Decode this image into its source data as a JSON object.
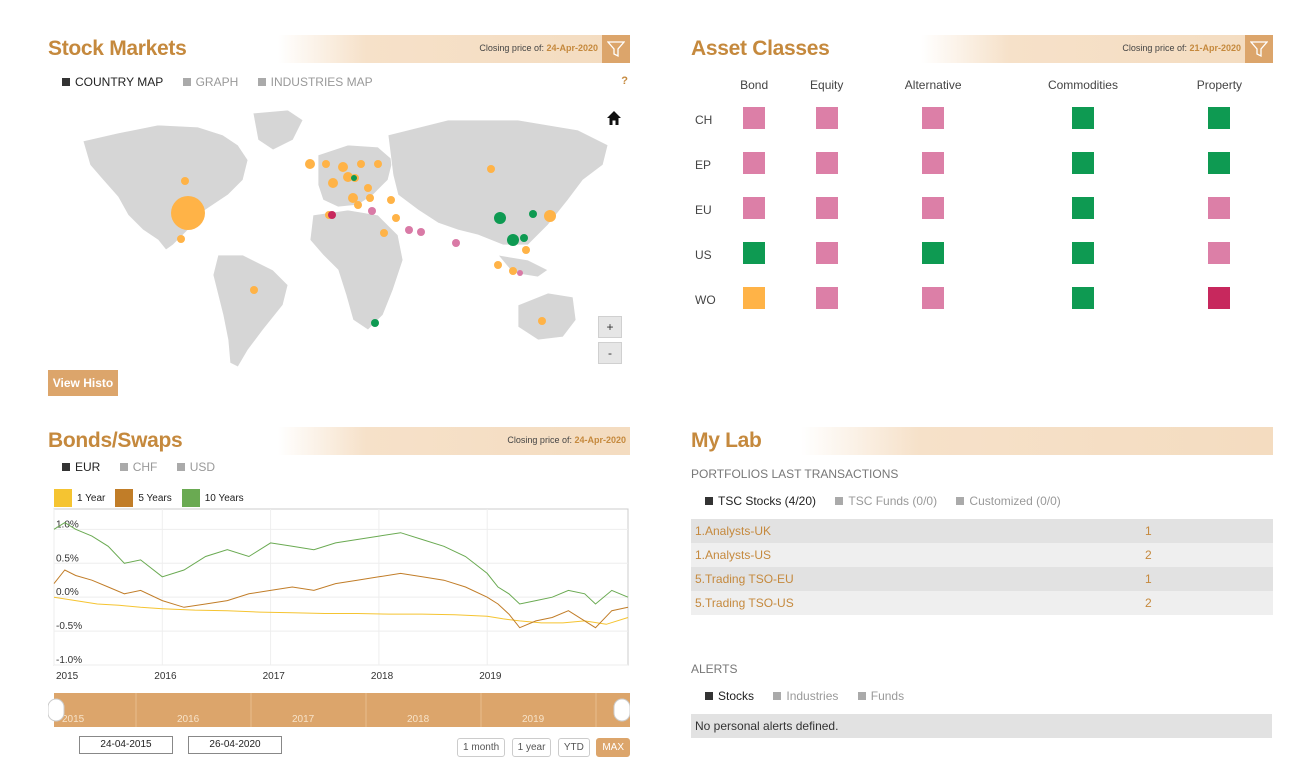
{
  "stock_markets": {
    "title": "Stock Markets",
    "closing_label": "Closing price of:",
    "closing_date": "24-Apr-2020",
    "tabs": [
      "COUNTRY MAP",
      "GRAPH",
      "INDUSTRIES MAP"
    ],
    "help": "?",
    "zoom_in": "+",
    "zoom_out": "-",
    "view_histo": "View Histo",
    "colors": {
      "orange": "#ffb347",
      "green": "#0e9a52",
      "pink": "#d97aa6",
      "crimson": "#c7285d",
      "land": "#d6d6d6"
    }
  },
  "asset_classes": {
    "title": "Asset Classes",
    "closing_label": "Closing price of:",
    "closing_date": "21-Apr-2020",
    "columns": [
      "Bond",
      "Equity",
      "Alternative",
      "Commodities",
      "Property"
    ],
    "rows": [
      {
        "label": "CH",
        "cells": [
          "pink",
          "pink",
          "pink",
          "green",
          "green"
        ]
      },
      {
        "label": "EP",
        "cells": [
          "pink",
          "pink",
          "pink",
          "green",
          "green"
        ]
      },
      {
        "label": "EU",
        "cells": [
          "pink",
          "pink",
          "pink",
          "green",
          "pink"
        ]
      },
      {
        "label": "US",
        "cells": [
          "green",
          "pink",
          "green",
          "green",
          "pink"
        ]
      },
      {
        "label": "WO",
        "cells": [
          "orange",
          "pink",
          "pink",
          "green",
          "crimson"
        ]
      }
    ],
    "colors": {
      "pink": "#dc7fa7",
      "green": "#0e9a52",
      "orange": "#ffb347",
      "crimson": "#c7285d"
    }
  },
  "bonds": {
    "title": "Bonds/Swaps",
    "closing_label": "Closing price of:",
    "closing_date": "24-Apr-2020",
    "tabs": [
      "EUR",
      "CHF",
      "USD"
    ],
    "legend": [
      {
        "name": "1 Year",
        "color": "#f5c431"
      },
      {
        "name": "5 Years",
        "color": "#c17d28"
      },
      {
        "name": "10 Years",
        "color": "#6aaa52"
      }
    ],
    "start_date": "24-04-2015",
    "end_date": "26-04-2020",
    "range_buttons": [
      "1 month",
      "1 year",
      "YTD",
      "MAX"
    ],
    "navigator_years": [
      "2015",
      "2016",
      "2017",
      "2018",
      "2019"
    ]
  },
  "chart_data": {
    "type": "line",
    "title": "",
    "xlabel": "",
    "ylabel": "",
    "x_ticks": [
      "2015",
      "2016",
      "2017",
      "2018",
      "2019"
    ],
    "y_ticks": [
      "1.0%",
      "0.5%",
      "0.0%",
      "-0.5%",
      "-1.0%"
    ],
    "ylim": [
      -1.0,
      1.3
    ],
    "xlim": [
      2015.0,
      2020.3
    ],
    "series": [
      {
        "name": "1 Year",
        "color": "#f5c431",
        "x": [
          2015.0,
          2015.2,
          2015.4,
          2015.6,
          2015.8,
          2016.0,
          2016.3,
          2016.6,
          2016.9,
          2017.2,
          2017.5,
          2017.8,
          2018.1,
          2018.4,
          2018.7,
          2019.0,
          2019.15,
          2019.3,
          2019.5,
          2019.7,
          2019.9,
          2020.1,
          2020.3
        ],
        "y": [
          0.0,
          -0.05,
          -0.1,
          -0.12,
          -0.15,
          -0.17,
          -0.19,
          -0.2,
          -0.22,
          -0.23,
          -0.24,
          -0.24,
          -0.25,
          -0.25,
          -0.26,
          -0.28,
          -0.32,
          -0.35,
          -0.38,
          -0.38,
          -0.35,
          -0.4,
          -0.3
        ]
      },
      {
        "name": "5 Years",
        "color": "#c17d28",
        "x": [
          2015.0,
          2015.1,
          2015.2,
          2015.35,
          2015.5,
          2015.65,
          2015.8,
          2016.0,
          2016.2,
          2016.4,
          2016.6,
          2016.8,
          2017.0,
          2017.2,
          2017.4,
          2017.6,
          2017.8,
          2018.0,
          2018.2,
          2018.4,
          2018.6,
          2018.8,
          2019.0,
          2019.1,
          2019.2,
          2019.3,
          2019.45,
          2019.6,
          2019.75,
          2019.9,
          2020.0,
          2020.15,
          2020.3
        ],
        "y": [
          0.2,
          0.4,
          0.32,
          0.25,
          0.15,
          0.05,
          0.1,
          -0.05,
          -0.15,
          -0.1,
          -0.05,
          0.05,
          0.1,
          0.15,
          0.1,
          0.2,
          0.25,
          0.3,
          0.35,
          0.3,
          0.25,
          0.15,
          0.0,
          -0.1,
          -0.25,
          -0.45,
          -0.35,
          -0.3,
          -0.2,
          -0.35,
          -0.45,
          -0.2,
          -0.15
        ]
      },
      {
        "name": "10 Years",
        "color": "#6aaa52",
        "x": [
          2015.0,
          2015.1,
          2015.2,
          2015.35,
          2015.5,
          2015.65,
          2015.8,
          2016.0,
          2016.2,
          2016.4,
          2016.6,
          2016.8,
          2017.0,
          2017.2,
          2017.4,
          2017.6,
          2017.8,
          2018.0,
          2018.2,
          2018.4,
          2018.6,
          2018.8,
          2019.0,
          2019.1,
          2019.2,
          2019.3,
          2019.45,
          2019.6,
          2019.75,
          2019.9,
          2020.0,
          2020.15,
          2020.3
        ],
        "y": [
          1.0,
          1.1,
          1.0,
          0.9,
          0.75,
          0.5,
          0.55,
          0.3,
          0.4,
          0.6,
          0.7,
          0.6,
          0.8,
          0.75,
          0.7,
          0.8,
          0.85,
          0.9,
          0.95,
          0.85,
          0.75,
          0.6,
          0.35,
          0.15,
          0.05,
          -0.1,
          -0.05,
          0.0,
          0.1,
          0.05,
          -0.1,
          0.1,
          0.0
        ]
      }
    ]
  },
  "my_lab": {
    "title": "My Lab",
    "portfolios_heading": "PORTFOLIOS LAST TRANSACTIONS",
    "tabs": [
      "TSC Stocks (4/20)",
      "TSC Funds (0/0)",
      "Customized (0/0)"
    ],
    "portfolios": [
      {
        "name": "1.Analysts-UK",
        "count": "1"
      },
      {
        "name": "1.Analysts-US",
        "count": "2"
      },
      {
        "name": "5.Trading TSO-EU",
        "count": "1"
      },
      {
        "name": "5.Trading TSO-US",
        "count": "2"
      }
    ],
    "alerts_heading": "ALERTS",
    "alert_tabs": [
      "Stocks",
      "Industries",
      "Funds"
    ],
    "alerts_empty": "No personal alerts defined."
  }
}
